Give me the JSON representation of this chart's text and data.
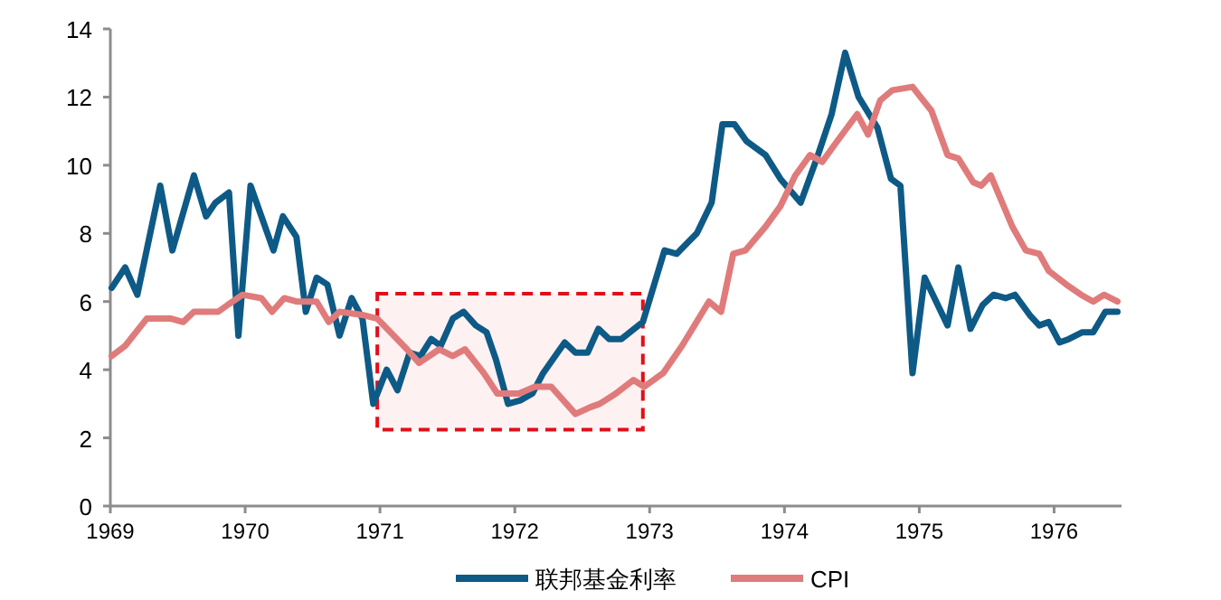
{
  "chart_data": {
    "type": "line",
    "xlim": [
      1969,
      1976.5
    ],
    "xticks": [
      1969,
      1970,
      1971,
      1972,
      1973,
      1974,
      1975,
      1976
    ],
    "ylim": [
      0,
      14
    ],
    "yticks": [
      0,
      2,
      4,
      6,
      8,
      10,
      12,
      14
    ],
    "grid": false,
    "legend": "bottom",
    "marker": "none",
    "line_style": "solid",
    "bands": [
      {
        "axis": "x",
        "from": 1970.98,
        "to": 1972.95,
        "color": "#e0101a"
      }
    ],
    "series": [
      {
        "name": "联邦基金利率",
        "color": "#0e5a86",
        "x": [
          1969.01,
          1969.11,
          1969.2,
          1969.37,
          1969.46,
          1969.62,
          1969.71,
          1969.78,
          1969.88,
          1969.95,
          1970.04,
          1970.21,
          1970.28,
          1970.38,
          1970.45,
          1970.53,
          1970.61,
          1970.7,
          1970.79,
          1970.87,
          1970.95,
          1971.05,
          1971.13,
          1971.22,
          1971.3,
          1971.38,
          1971.45,
          1971.54,
          1971.62,
          1971.71,
          1971.79,
          1971.86,
          1971.95,
          1972.04,
          1972.13,
          1972.21,
          1972.37,
          1972.45,
          1972.54,
          1972.62,
          1972.7,
          1972.79,
          1972.95,
          1973.11,
          1973.2,
          1973.35,
          1973.46,
          1973.54,
          1973.63,
          1973.72,
          1973.86,
          1973.97,
          1974.12,
          1974.24,
          1974.35,
          1974.45,
          1974.55,
          1974.69,
          1974.79,
          1974.86,
          1974.95,
          1975.04,
          1975.21,
          1975.29,
          1975.38,
          1975.47,
          1975.55,
          1975.64,
          1975.71,
          1975.82,
          1975.89,
          1975.96,
          1976.04,
          1976.11,
          1976.21,
          1976.29,
          1976.38,
          1976.47
        ],
        "values": [
          6.4,
          7.0,
          6.2,
          9.4,
          7.5,
          9.7,
          8.5,
          8.9,
          9.2,
          5.0,
          9.4,
          7.5,
          8.5,
          7.9,
          5.7,
          6.7,
          6.5,
          5.0,
          6.1,
          5.5,
          3.0,
          4.0,
          3.4,
          4.5,
          4.4,
          4.9,
          4.7,
          5.5,
          5.7,
          5.3,
          5.1,
          4.3,
          3.0,
          3.1,
          3.3,
          3.9,
          4.8,
          4.5,
          4.5,
          5.2,
          4.9,
          4.9,
          5.4,
          7.5,
          7.4,
          8.0,
          8.9,
          11.2,
          11.2,
          10.7,
          10.3,
          9.6,
          8.9,
          10.2,
          11.5,
          13.3,
          12.0,
          11.1,
          9.6,
          9.4,
          3.9,
          6.7,
          5.3,
          7.0,
          5.2,
          5.9,
          6.2,
          6.1,
          6.2,
          5.6,
          5.3,
          5.4,
          4.8,
          4.9,
          5.1,
          5.1,
          5.7,
          5.7
        ]
      },
      {
        "name": "CPI",
        "color": "#e07b7b",
        "x": [
          1969.01,
          1969.11,
          1969.27,
          1969.45,
          1969.54,
          1969.62,
          1969.8,
          1969.87,
          1969.98,
          1970.12,
          1970.2,
          1970.29,
          1970.38,
          1970.53,
          1970.62,
          1970.7,
          1970.88,
          1970.98,
          1971.2,
          1971.29,
          1971.44,
          1971.54,
          1971.63,
          1971.77,
          1971.87,
          1972.03,
          1972.15,
          1972.27,
          1972.45,
          1972.56,
          1972.63,
          1972.75,
          1972.88,
          1972.96,
          1973.1,
          1973.24,
          1973.44,
          1973.53,
          1973.62,
          1973.71,
          1973.86,
          1973.97,
          1974.08,
          1974.19,
          1974.28,
          1974.39,
          1974.54,
          1974.62,
          1974.71,
          1974.8,
          1974.95,
          1975.09,
          1975.21,
          1975.29,
          1975.4,
          1975.46,
          1975.53,
          1975.69,
          1975.79,
          1975.89,
          1975.96,
          1976.09,
          1976.2,
          1976.29,
          1976.37,
          1976.47
        ],
        "values": [
          4.4,
          4.7,
          5.5,
          5.5,
          5.4,
          5.7,
          5.7,
          5.9,
          6.2,
          6.1,
          5.7,
          6.1,
          6.0,
          6.0,
          5.4,
          5.7,
          5.6,
          5.5,
          4.6,
          4.2,
          4.6,
          4.4,
          4.6,
          3.9,
          3.3,
          3.3,
          3.5,
          3.5,
          2.7,
          2.9,
          3.0,
          3.3,
          3.7,
          3.5,
          3.9,
          4.7,
          6.0,
          5.7,
          7.4,
          7.5,
          8.2,
          8.8,
          9.7,
          10.3,
          10.1,
          10.7,
          11.5,
          10.9,
          11.9,
          12.2,
          12.3,
          11.6,
          10.3,
          10.2,
          9.5,
          9.4,
          9.7,
          8.2,
          7.5,
          7.4,
          6.9,
          6.5,
          6.2,
          6.0,
          6.2,
          6.0
        ]
      }
    ]
  }
}
